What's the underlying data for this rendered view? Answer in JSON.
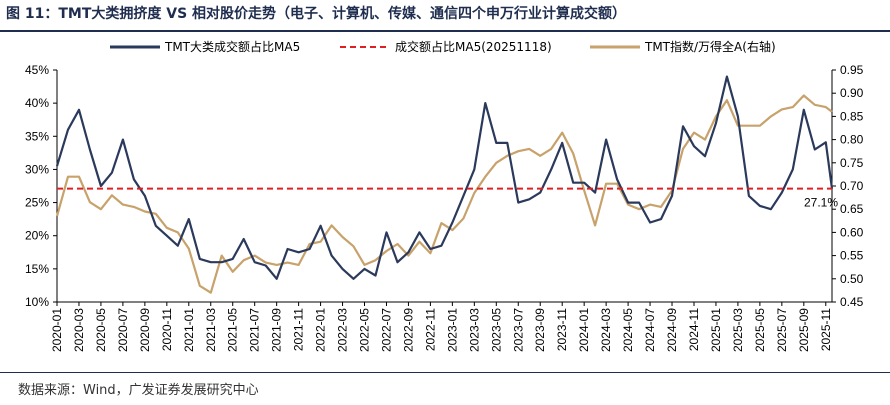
{
  "figure": {
    "title": "图 11：TMT大类拥挤度 VS 相对股价走势（电子、计算机、传媒、通信四个申万行业计算成交额）",
    "source": "数据来源：Wind，广发证券发展研究中心"
  },
  "chart_data": {
    "type": "line",
    "legend_position": "top",
    "grid": false,
    "series": [
      {
        "name": "TMT大类成交额占比MA5",
        "axis": "left",
        "color": "#2b3a5c",
        "points": [
          [
            "2020-01",
            0.305
          ],
          [
            "2020-02",
            0.36
          ],
          [
            "2020-03",
            0.39
          ],
          [
            "2020-04",
            0.33
          ],
          [
            "2020-05",
            0.275
          ],
          [
            "2020-06",
            0.295
          ],
          [
            "2020-07",
            0.345
          ],
          [
            "2020-08",
            0.285
          ],
          [
            "2020-09",
            0.26
          ],
          [
            "2020-10",
            0.215
          ],
          [
            "2020-11",
            0.2
          ],
          [
            "2020-12",
            0.185
          ],
          [
            "2021-01",
            0.225
          ],
          [
            "2021-02",
            0.165
          ],
          [
            "2021-03",
            0.16
          ],
          [
            "2021-04",
            0.16
          ],
          [
            "2021-05",
            0.165
          ],
          [
            "2021-06",
            0.195
          ],
          [
            "2021-07",
            0.16
          ],
          [
            "2021-08",
            0.155
          ],
          [
            "2021-09",
            0.135
          ],
          [
            "2021-10",
            0.18
          ],
          [
            "2021-11",
            0.175
          ],
          [
            "2021-12",
            0.18
          ],
          [
            "2022-01",
            0.215
          ],
          [
            "2022-02",
            0.17
          ],
          [
            "2022-03",
            0.15
          ],
          [
            "2022-04",
            0.135
          ],
          [
            "2022-05",
            0.15
          ],
          [
            "2022-06",
            0.14
          ],
          [
            "2022-07",
            0.205
          ],
          [
            "2022-08",
            0.16
          ],
          [
            "2022-09",
            0.175
          ],
          [
            "2022-10",
            0.205
          ],
          [
            "2022-11",
            0.18
          ],
          [
            "2022-12",
            0.185
          ],
          [
            "2023-01",
            0.22
          ],
          [
            "2023-02",
            0.26
          ],
          [
            "2023-03",
            0.3
          ],
          [
            "2023-04",
            0.4
          ],
          [
            "2023-05",
            0.34
          ],
          [
            "2023-06",
            0.34
          ],
          [
            "2023-07",
            0.25
          ],
          [
            "2023-08",
            0.255
          ],
          [
            "2023-09",
            0.265
          ],
          [
            "2023-10",
            0.3
          ],
          [
            "2023-11",
            0.34
          ],
          [
            "2023-12",
            0.28
          ],
          [
            "2024-01",
            0.28
          ],
          [
            "2024-02",
            0.265
          ],
          [
            "2024-03",
            0.345
          ],
          [
            "2024-04",
            0.285
          ],
          [
            "2024-05",
            0.25
          ],
          [
            "2024-06",
            0.25
          ],
          [
            "2024-07",
            0.22
          ],
          [
            "2024-08",
            0.225
          ],
          [
            "2024-09",
            0.26
          ],
          [
            "2024-10",
            0.365
          ],
          [
            "2024-11",
            0.335
          ],
          [
            "2024-12",
            0.32
          ],
          [
            "2025-01",
            0.37
          ],
          [
            "2025-02",
            0.44
          ],
          [
            "2025-03",
            0.38
          ],
          [
            "2025-04",
            0.26
          ],
          [
            "2025-05",
            0.245
          ],
          [
            "2025-06",
            0.24
          ],
          [
            "2025-07",
            0.265
          ],
          [
            "2025-08",
            0.3
          ],
          [
            "2025-09",
            0.39
          ],
          [
            "2025-10",
            0.33
          ],
          [
            "2025-11",
            0.341
          ],
          [
            "2025-11-18",
            0.271
          ]
        ]
      },
      {
        "name": "成交额占比MA5(20251118)",
        "axis": "left",
        "color": "#e02020",
        "style": "dashed",
        "value": 0.271
      },
      {
        "name": "TMT指数/万得全A(右轴)",
        "axis": "right",
        "color": "#c8a26b",
        "points": [
          [
            "2020-01",
            0.635
          ],
          [
            "2020-02",
            0.72
          ],
          [
            "2020-03",
            0.72
          ],
          [
            "2020-04",
            0.665
          ],
          [
            "2020-05",
            0.65
          ],
          [
            "2020-06",
            0.68
          ],
          [
            "2020-07",
            0.66
          ],
          [
            "2020-08",
            0.655
          ],
          [
            "2020-09",
            0.645
          ],
          [
            "2020-10",
            0.64
          ],
          [
            "2020-11",
            0.61
          ],
          [
            "2020-12",
            0.6
          ],
          [
            "2021-01",
            0.565
          ],
          [
            "2021-02",
            0.485
          ],
          [
            "2021-03",
            0.47
          ],
          [
            "2021-04",
            0.55
          ],
          [
            "2021-05",
            0.515
          ],
          [
            "2021-06",
            0.54
          ],
          [
            "2021-07",
            0.55
          ],
          [
            "2021-08",
            0.535
          ],
          [
            "2021-09",
            0.53
          ],
          [
            "2021-10",
            0.535
          ],
          [
            "2021-11",
            0.53
          ],
          [
            "2021-12",
            0.575
          ],
          [
            "2022-01",
            0.58
          ],
          [
            "2022-02",
            0.615
          ],
          [
            "2022-03",
            0.59
          ],
          [
            "2022-04",
            0.57
          ],
          [
            "2022-05",
            0.53
          ],
          [
            "2022-06",
            0.54
          ],
          [
            "2022-07",
            0.56
          ],
          [
            "2022-08",
            0.575
          ],
          [
            "2022-09",
            0.55
          ],
          [
            "2022-10",
            0.58
          ],
          [
            "2022-11",
            0.555
          ],
          [
            "2022-12",
            0.62
          ],
          [
            "2023-01",
            0.605
          ],
          [
            "2023-02",
            0.63
          ],
          [
            "2023-03",
            0.685
          ],
          [
            "2023-04",
            0.72
          ],
          [
            "2023-05",
            0.75
          ],
          [
            "2023-06",
            0.765
          ],
          [
            "2023-07",
            0.775
          ],
          [
            "2023-08",
            0.78
          ],
          [
            "2023-09",
            0.765
          ],
          [
            "2023-10",
            0.78
          ],
          [
            "2023-11",
            0.815
          ],
          [
            "2023-12",
            0.77
          ],
          [
            "2024-01",
            0.69
          ],
          [
            "2024-02",
            0.615
          ],
          [
            "2024-03",
            0.705
          ],
          [
            "2024-04",
            0.705
          ],
          [
            "2024-05",
            0.66
          ],
          [
            "2024-06",
            0.65
          ],
          [
            "2024-07",
            0.66
          ],
          [
            "2024-08",
            0.655
          ],
          [
            "2024-09",
            0.69
          ],
          [
            "2024-10",
            0.78
          ],
          [
            "2024-11",
            0.815
          ],
          [
            "2024-12",
            0.8
          ],
          [
            "2025-01",
            0.85
          ],
          [
            "2025-02",
            0.885
          ],
          [
            "2025-03",
            0.83
          ],
          [
            "2025-04",
            0.83
          ],
          [
            "2025-05",
            0.83
          ],
          [
            "2025-06",
            0.85
          ],
          [
            "2025-07",
            0.865
          ],
          [
            "2025-08",
            0.87
          ],
          [
            "2025-09",
            0.895
          ],
          [
            "2025-10",
            0.875
          ],
          [
            "2025-11",
            0.87
          ],
          [
            "2025-11-18",
            0.86
          ]
        ]
      }
    ],
    "annotation": {
      "text": "27.1%",
      "x": "2025-11-18",
      "y": 0.271
    },
    "left_axis": {
      "ylim": [
        0.1,
        0.45
      ],
      "ticks": [
        {
          "value": 0.1,
          "label": "10%"
        },
        {
          "value": 0.15,
          "label": "15%"
        },
        {
          "value": 0.2,
          "label": "20%"
        },
        {
          "value": 0.25,
          "label": "25%"
        },
        {
          "value": 0.3,
          "label": "30%"
        },
        {
          "value": 0.35,
          "label": "35%"
        },
        {
          "value": 0.4,
          "label": "40%"
        },
        {
          "value": 0.45,
          "label": "45%"
        }
      ]
    },
    "right_axis": {
      "ylim": [
        0.45,
        0.95
      ],
      "ticks": [
        {
          "value": 0.45,
          "label": "0.45"
        },
        {
          "value": 0.5,
          "label": "0.50"
        },
        {
          "value": 0.55,
          "label": "0.55"
        },
        {
          "value": 0.6,
          "label": "0.60"
        },
        {
          "value": 0.65,
          "label": "0.65"
        },
        {
          "value": 0.7,
          "label": "0.70"
        },
        {
          "value": 0.75,
          "label": "0.75"
        },
        {
          "value": 0.8,
          "label": "0.80"
        },
        {
          "value": 0.85,
          "label": "0.85"
        },
        {
          "value": 0.9,
          "label": "0.90"
        },
        {
          "value": 0.95,
          "label": "0.95"
        }
      ]
    },
    "x_axis": {
      "start": "2020-01",
      "end": "2025-11-18",
      "ticks": [
        "2020-01",
        "2020-03",
        "2020-05",
        "2020-07",
        "2020-09",
        "2020-11",
        "2021-01",
        "2021-03",
        "2021-05",
        "2021-07",
        "2021-09",
        "2021-11",
        "2022-01",
        "2022-03",
        "2022-05",
        "2022-07",
        "2022-09",
        "2022-11",
        "2023-01",
        "2023-03",
        "2023-05",
        "2023-07",
        "2023-09",
        "2023-11",
        "2024-01",
        "2024-03",
        "2024-05",
        "2024-07",
        "2024-09",
        "2024-11",
        "2025-01",
        "2025-03",
        "2025-05",
        "2025-07",
        "2025-09",
        "2025-11"
      ]
    }
  }
}
